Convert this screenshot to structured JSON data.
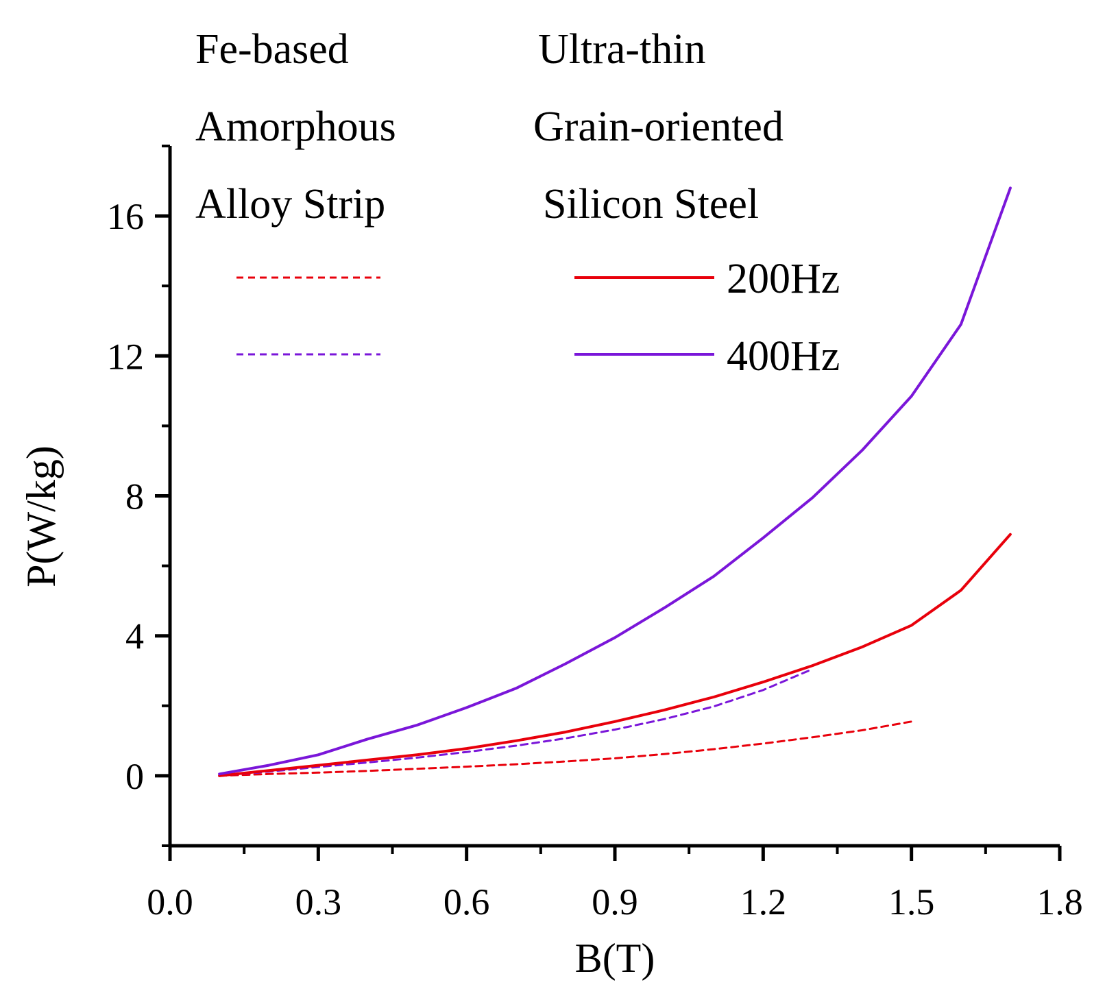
{
  "chart_data": {
    "type": "line",
    "xlabel": "B(T)",
    "ylabel": "P(W/kg)",
    "xlim": [
      0.0,
      1.8
    ],
    "ylim": [
      -2,
      18
    ],
    "xticks": [
      "0.0",
      "0.3",
      "0.6",
      "0.9",
      "1.2",
      "1.5",
      "1.8"
    ],
    "yticks": [
      "0",
      "4",
      "8",
      "12",
      "16"
    ],
    "xtick_values": [
      0.0,
      0.3,
      0.6,
      0.9,
      1.2,
      1.5,
      1.8
    ],
    "ytick_values": [
      0,
      4,
      8,
      12,
      16
    ],
    "grid": false,
    "legend": {
      "placement": "top",
      "group_headers": {
        "amorphous": [
          "Fe-based",
          "Amorphous",
          "Alloy Strip"
        ],
        "silicon": [
          "Ultra-thin",
          "Grain-oriented",
          "Silicon Steel"
        ]
      },
      "frequency_labels": [
        "200Hz",
        "400Hz"
      ]
    },
    "series": [
      {
        "material": "Fe-based Amorphous Alloy Strip",
        "frequency": "200Hz",
        "color": "#e8000b",
        "dash": true,
        "x": [
          0.1,
          0.2,
          0.3,
          0.4,
          0.5,
          0.6,
          0.7,
          0.8,
          0.9,
          1.0,
          1.1,
          1.2,
          1.3,
          1.4,
          1.5
        ],
        "y": [
          0.0,
          0.05,
          0.09,
          0.14,
          0.2,
          0.26,
          0.33,
          0.41,
          0.5,
          0.62,
          0.76,
          0.92,
          1.1,
          1.3,
          1.55
        ]
      },
      {
        "material": "Fe-based Amorphous Alloy Strip",
        "frequency": "400Hz",
        "color": "#7a16d9",
        "dash": true,
        "x": [
          0.1,
          0.2,
          0.3,
          0.4,
          0.5,
          0.6,
          0.7,
          0.8,
          0.9,
          1.0,
          1.1,
          1.2,
          1.3
        ],
        "y": [
          0.0,
          0.12,
          0.25,
          0.38,
          0.52,
          0.68,
          0.86,
          1.07,
          1.32,
          1.62,
          1.98,
          2.45,
          3.05
        ]
      },
      {
        "material": "Ultra-thin Grain-oriented Silicon Steel",
        "frequency": "200Hz",
        "color": "#e8000b",
        "dash": false,
        "x": [
          0.1,
          0.2,
          0.3,
          0.4,
          0.5,
          0.6,
          0.7,
          0.8,
          0.9,
          1.0,
          1.1,
          1.2,
          1.3,
          1.4,
          1.5,
          1.6,
          1.7
        ],
        "y": [
          0.0,
          0.15,
          0.3,
          0.45,
          0.6,
          0.78,
          1.0,
          1.25,
          1.55,
          1.88,
          2.25,
          2.68,
          3.15,
          3.68,
          4.3,
          5.3,
          6.9
        ]
      },
      {
        "material": "Ultra-thin Grain-oriented Silicon Steel",
        "frequency": "400Hz",
        "color": "#7a16d9",
        "dash": false,
        "x": [
          0.1,
          0.2,
          0.3,
          0.4,
          0.5,
          0.6,
          0.7,
          0.8,
          0.9,
          1.0,
          1.1,
          1.2,
          1.3,
          1.4,
          1.5,
          1.6,
          1.7
        ],
        "y": [
          0.05,
          0.3,
          0.6,
          1.05,
          1.45,
          1.95,
          2.5,
          3.2,
          3.95,
          4.8,
          5.7,
          6.8,
          7.95,
          9.3,
          10.85,
          12.9,
          16.8
        ]
      }
    ]
  }
}
